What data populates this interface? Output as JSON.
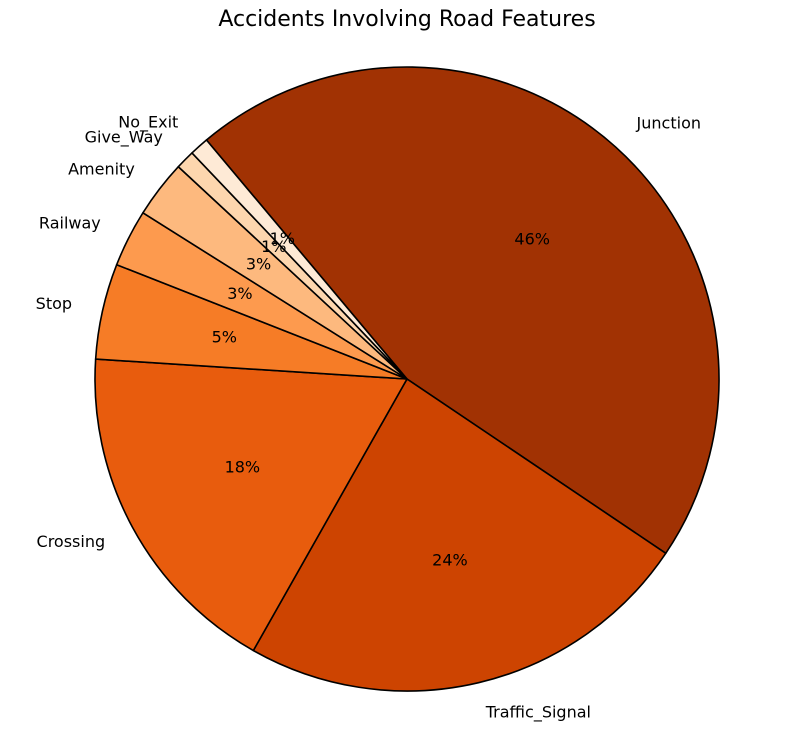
{
  "chart_data": {
    "type": "pie",
    "title": "Accidents Involving Road Features",
    "categories": [
      "Junction",
      "Traffic_Signal",
      "Crossing",
      "Stop",
      "Railway",
      "Amenity",
      "Give_Way",
      "No_Exit"
    ],
    "values": [
      46,
      24,
      18,
      5,
      3,
      3,
      1,
      1
    ],
    "value_labels": [
      "46%",
      "24%",
      "18%",
      "5%",
      "3%",
      "3%",
      "1%",
      "1%"
    ],
    "colors": [
      "#A13203",
      "#CD4401",
      "#E85C0D",
      "#F67C26",
      "#FD9A4E",
      "#FDB97E",
      "#FDD6AE",
      "#FEEAD6"
    ],
    "start_angle_deg": 130,
    "direction": "clockwise",
    "edge_color": "#000000"
  }
}
